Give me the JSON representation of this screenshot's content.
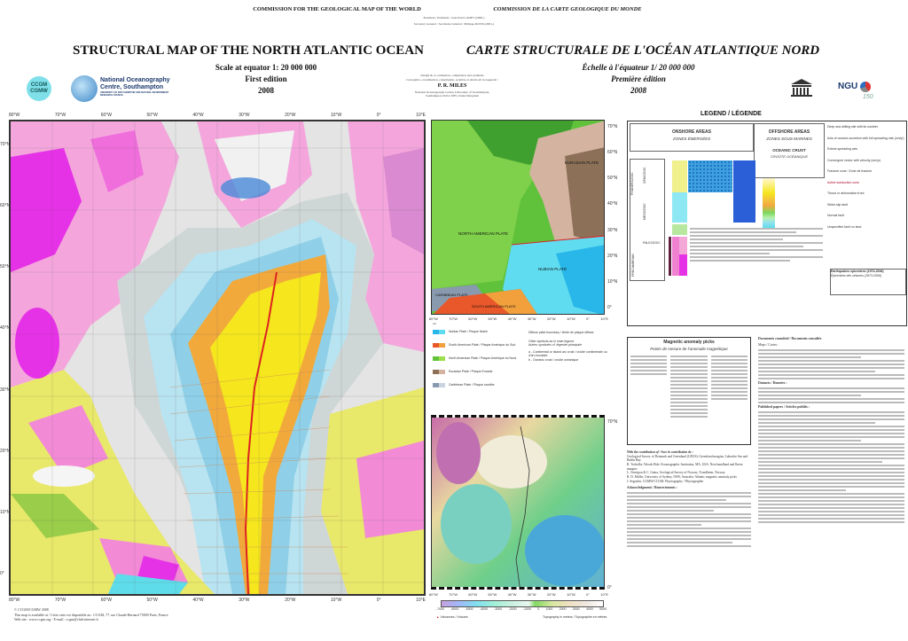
{
  "header": {
    "commission_en": "COMMISSION FOR THE GEOLOGICAL MAP OF THE WORLD",
    "commission_fr": "COMMISSION DE LA CARTE GEOLOGIQUE DU MONDE",
    "president": "President / Président : Jean-Paul CADET (2000-)",
    "secretary": "Secretary General / Secrétaire Général : Philippe ROSSI (2001-)",
    "title_en": "STRUCTURAL MAP OF THE NORTH ATLANTIC OCEAN",
    "title_fr": "CARTE STRUCTURALE DE L'OCÉAN ATLANTIQUE NORD",
    "scale_en": "Scale at equator 1: 20 000 000",
    "edition_en": "First edition",
    "year_en": "2008",
    "scale_fr": "Échelle à l'équateur  1/ 20 000 000",
    "edition_fr": "Première édition",
    "year_fr": "2008",
    "design_en": "Design & co-ordination, compilation and synthesis",
    "design_fr": "Conception, coordination, compilation, synthèse et dessin de la maquette :",
    "author": "P. R. MILES",
    "affiliation_1": "National Oceanography Centre, University of Southampton,",
    "affiliation_2": "Southampton SO14 3ZH, United Kingdom"
  },
  "logos": {
    "ccgm": "CCGM CGMW",
    "noc_1": "National Oceanography",
    "noc_2": "Centre, Southampton",
    "noc_3": "UNIVERSITY OF SOUTHAMPTON AND NATURAL ENVIRONMENT RESEARCH COUNCIL",
    "unesco": "UNESCO",
    "ngu": "NGU",
    "ngu_150": "150"
  },
  "main_map": {
    "lon_labels": [
      "80°W",
      "70°W",
      "60°W",
      "50°W",
      "40°W",
      "30°W",
      "20°W",
      "10°W",
      "0°",
      "10°E"
    ],
    "lat_labels": [
      "70°N",
      "60°N",
      "50°N",
      "40°N",
      "30°N",
      "20°N",
      "10°N",
      "0°"
    ],
    "colors": {
      "ocean_young": "#f5e61e",
      "ocean_mid": "#f2a93c",
      "ocean_old": "#b8e3f0",
      "shelf": "#d9d9d9",
      "craton": "#f28ad6",
      "magenta": "#e632e6",
      "green": "#9acd4a",
      "cyan": "#5fdcea"
    }
  },
  "footer": {
    "copyright": "© CCGM/CGMW 2008",
    "available": "This map is available at / Cette carte est disponible au : CCGM, 77, rue Claude-Bernard 75005 Paris, France",
    "web": "Web site : www.ccgm.org  -  E-mail : ccgm@club-internet.fr"
  },
  "plate_map": {
    "lat_labels": [
      "70°N",
      "60°N",
      "50°N",
      "40°N",
      "30°N",
      "20°N",
      "10°N",
      "0°"
    ],
    "lon_labels": [
      "80°W",
      "70°W",
      "60°W",
      "50°W",
      "40°W",
      "30°W",
      "20°W",
      "10°W",
      "0°",
      "10°E"
    ],
    "plates": [
      "EURASIAN PLATE",
      "NORTH AMERICAN PLATE",
      "NUBIAN PLATE",
      "CARIBBEAN PLATE",
      "SOUTH AMERICAN PLATE"
    ],
    "ab_label": "a   b",
    "legend": [
      {
        "label": "Nubian Plate / Plaque Nubie",
        "a": "#29b6e8",
        "b": "#5fdcf0"
      },
      {
        "label": "South American Plate / Plaque Amérique du Sud",
        "a": "#e8582a",
        "b": "#f2a03c"
      },
      {
        "label": "North American Plate / Plaque Amérique du Nord",
        "a": "#5fc23a",
        "b": "#9be04a"
      },
      {
        "label": "Eurasian Plate / Plaque Eurasie",
        "a": "#8c7158",
        "b": "#d4b4a0"
      },
      {
        "label": "Caribbean Plate / Plaque caraïbe",
        "a": "#8a9aae",
        "b": "#c8d4e0"
      }
    ],
    "diffuse": "Diffuse plate boundary / limite de plaque diffuse",
    "other_1": "Other symbols as in main legend",
    "other_2": "Autres symboles cf. légende principale",
    "note_a": "a - Continental or island arc crust / croûte continentale ou d'arc insulaire",
    "note_b": "b - Oceanic crust / croûte océanique"
  },
  "topo_map": {
    "lon_labels": [
      "80°W",
      "70°W",
      "60°W",
      "50°W",
      "40°W",
      "30°W",
      "20°W",
      "10°W",
      "0°",
      "10°E"
    ],
    "lat_labels": [
      "70°N",
      "0°"
    ],
    "colorbar_ticks": [
      "-7000",
      "-6000",
      "-5000",
      "-4000",
      "-3000",
      "-2000",
      "-1000",
      "0",
      "1000",
      "2000",
      "3000",
      "4000",
      "5000"
    ],
    "volcanoes": "Volcanoes / Volcans",
    "units": "Topography in meters / Topographie en mètres"
  },
  "legend": {
    "title": "LEGEND / LÉGENDE",
    "onshore_en": "ONSHORE AREAS",
    "onshore_fr": "ZONES ÉMERGÉES",
    "offshore_en": "OFFSHORE AREAS",
    "offshore_fr": "ZONES SOUS-MARINES",
    "oceanic_en": "OCEANIC CRUST",
    "oceanic_fr": "CROÛTE OCÉANIQUE",
    "eras": [
      "CENOZOIC",
      "MESOZOIC",
      "PALEOZOIC",
      "PRECAMBRIAN"
    ],
    "eon": "PHANEROZOIC",
    "symbols": [
      "Deep sea drilling site with its number",
      "Axis of oceanic accretion with full spreading rate (cm/yr)",
      "Extinct spreading axis",
      "Convergent vector with velocity (cm/yr)",
      "Fracture zone / Zone de fracture",
      "Active subduction zone",
      "Thrust or deformation front",
      "Strike-slip fault",
      "Normal fault",
      "Unspecified fault on land"
    ],
    "earthquakes_en": "Earthquakes epicentres (1973-2006)",
    "earthquakes_fr": "Épicentres des séismes (1973-2006)"
  },
  "magnetic": {
    "title_en": "Magnetic anomaly picks",
    "title_fr": "Points de mesure de l'anomalie magnétique"
  },
  "contributions": {
    "title": "With the contribution of / Avec la contribution de :",
    "items": [
      "Geological Survey of Denmark and Greenland (GEUS): Greenland margins, Labrador Sea and Baffin Bay",
      "R. Tocholke, Woods Hole Oceanographic Institution, MA, USA: Newfoundland and Iberia margins",
      "L. Gernigon & C. Gaina, Geological Survey of Norway, Trondheim, Norway",
      "R. D. Müller, University of Sydney, NSW, Australia: Atlantic magnetic anomaly picks",
      "J. Segoufin, CGMW/CCGM: Physiography / Physiographie"
    ],
    "ack_title": "Acknowledgments / Remerciements :"
  },
  "documents": {
    "title": "Documents consulted / Documents consultés",
    "maps_title": "Maps / Cartes :",
    "datasets_title": "Datasets / Données :",
    "papers_title": "Published papers / Articles publiés :"
  }
}
